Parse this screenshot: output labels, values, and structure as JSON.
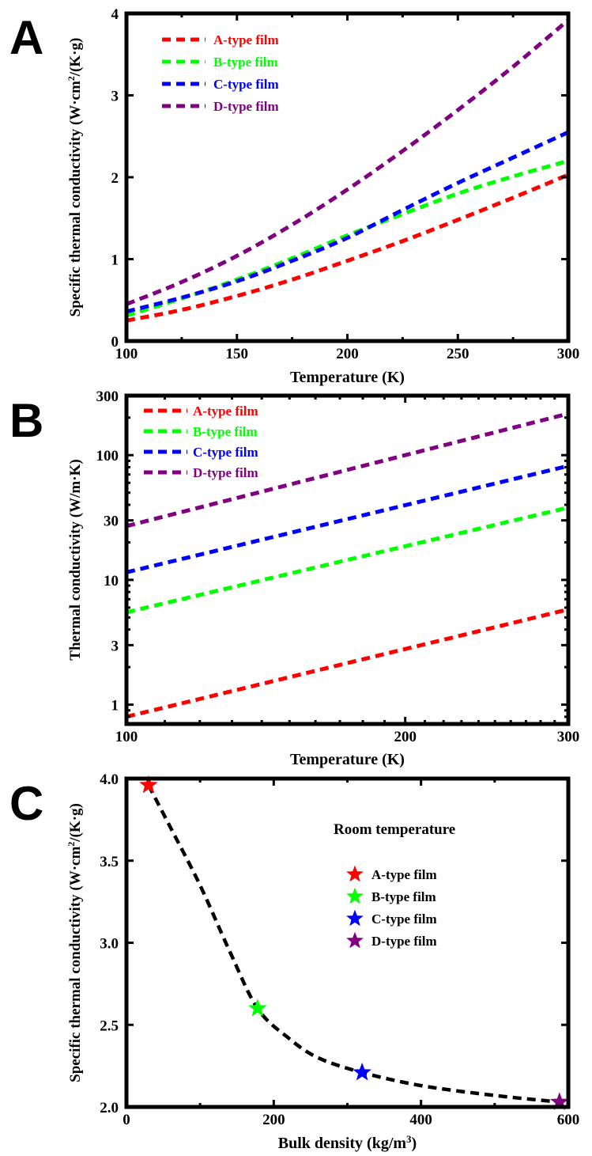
{
  "chart_data": [
    {
      "panel_label": "A",
      "type": "line",
      "xlabel": "Temperature (K)",
      "ylabel": "Specific thermal conductivity (W·cm",
      "ylabel_sup": "2",
      "ylabel_tail": "/(K·g)",
      "xlim": [
        100,
        300
      ],
      "ylim": [
        0,
        4
      ],
      "xticks": [
        100,
        150,
        200,
        250,
        300
      ],
      "yticks": [
        0,
        1,
        2,
        3,
        4
      ],
      "legend_position": "top-left",
      "x": [
        100,
        125,
        150,
        175,
        200,
        225,
        250,
        275,
        300
      ],
      "series": [
        {
          "name": "A-type film",
          "color": "#ff0000",
          "values": [
            0.25,
            0.38,
            0.55,
            0.75,
            0.98,
            1.22,
            1.48,
            1.75,
            2.03
          ]
        },
        {
          "name": "B-type film",
          "color": "#00ff00",
          "values": [
            0.31,
            0.52,
            0.75,
            1.01,
            1.29,
            1.55,
            1.8,
            2.01,
            2.2
          ]
        },
        {
          "name": "C-type film",
          "color": "#0000ff",
          "values": [
            0.36,
            0.53,
            0.73,
            0.98,
            1.26,
            1.6,
            1.93,
            2.24,
            2.55
          ]
        },
        {
          "name": "D-type film",
          "color": "#800080",
          "values": [
            0.45,
            0.72,
            1.04,
            1.42,
            1.85,
            2.32,
            2.82,
            3.35,
            3.92
          ]
        }
      ]
    },
    {
      "panel_label": "B",
      "type": "line",
      "xscale": "log",
      "yscale": "log",
      "xlabel": "Temperature (K)",
      "ylabel": "Thermal conductivity (W/m·K)",
      "xlim": [
        100,
        300
      ],
      "ylim": [
        0.7,
        300
      ],
      "xticks": [
        100,
        200,
        300
      ],
      "yticks": [
        1,
        3,
        10,
        30,
        100,
        300
      ],
      "legend_position": "top-left",
      "x": [
        100,
        300
      ],
      "series": [
        {
          "name": "A-type film",
          "color": "#ff0000",
          "values": [
            0.8,
            5.8
          ]
        },
        {
          "name": "B-type film",
          "color": "#00ff00",
          "values": [
            5.5,
            38
          ]
        },
        {
          "name": "C-type film",
          "color": "#0000ff",
          "values": [
            11.5,
            82
          ]
        },
        {
          "name": "D-type film",
          "color": "#800080",
          "values": [
            27,
            215
          ]
        }
      ]
    },
    {
      "panel_label": "C",
      "type": "scatter",
      "xlabel": "Bulk density (kg/m",
      "xlabel_sup": "3",
      "xlabel_tail": ")",
      "ylabel": "Specific thermal conductivity (W·cm",
      "ylabel_sup": "2",
      "ylabel_tail": "/(K·g)",
      "xlim": [
        0,
        600
      ],
      "ylim": [
        2.0,
        4.0
      ],
      "xticks": [
        0,
        200,
        400,
        600
      ],
      "yticks": [
        2.0,
        2.5,
        3.0,
        3.5,
        4.0
      ],
      "legend_title": "Room temperature",
      "legend_position": "top-right",
      "points": [
        {
          "name": "A-type film",
          "color": "#ff0000",
          "x": 30,
          "y": 3.96
        },
        {
          "name": "B-type film",
          "color": "#00ff00",
          "x": 178,
          "y": 2.6
        },
        {
          "name": "C-type film",
          "color": "#0000ff",
          "x": 320,
          "y": 2.21
        },
        {
          "name": "D-type film",
          "color": "#800080",
          "x": 588,
          "y": 2.03
        }
      ],
      "fit_line": {
        "color": "#000000",
        "x": [
          30,
          60,
          100,
          140,
          178,
          220,
          260,
          320,
          400,
          500,
          588
        ],
        "y": [
          3.96,
          3.7,
          3.35,
          2.95,
          2.6,
          2.42,
          2.3,
          2.21,
          2.13,
          2.07,
          2.03
        ]
      }
    }
  ]
}
